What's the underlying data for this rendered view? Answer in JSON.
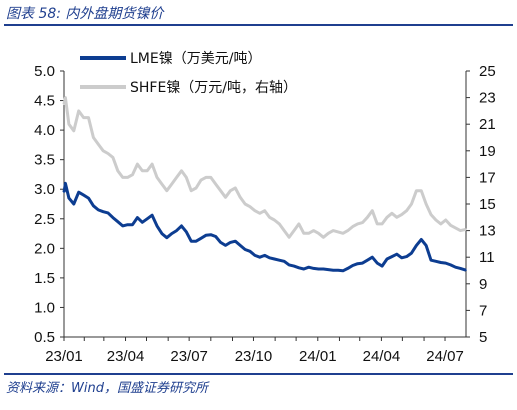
{
  "figure": {
    "title": "图表 58:   内外盘期货镍价",
    "source": "资料来源：Wind，国盛证券研究所"
  },
  "chart_data": {
    "type": "line",
    "title": "",
    "x_tick_labels": [
      "23/01",
      "23/04",
      "23/07",
      "23/10",
      "24/01",
      "24/04",
      "24/07"
    ],
    "x_range": [
      "2023-01-03",
      "2024-07-31"
    ],
    "y_left": {
      "label": "",
      "ticks": [
        "0.5",
        "1.0",
        "1.5",
        "2.0",
        "2.5",
        "3.0",
        "3.5",
        "4.0",
        "4.5",
        "5.0"
      ],
      "range": [
        0.5,
        5.0
      ]
    },
    "y_right": {
      "label": "",
      "ticks": [
        "5",
        "7",
        "9",
        "11",
        "13",
        "15",
        "17",
        "19",
        "21",
        "23",
        "25"
      ],
      "range": [
        5,
        25
      ]
    },
    "grid": false,
    "legend_position": "top-left",
    "series": [
      {
        "name": "LME镍（万美元/吨）",
        "axis": "left",
        "color": "#0d3d91",
        "x": [
          "2023-01-03",
          "2023-01-05",
          "2023-01-10",
          "2023-01-17",
          "2023-01-24",
          "2023-01-31",
          "2023-02-07",
          "2023-02-14",
          "2023-02-21",
          "2023-02-28",
          "2023-03-07",
          "2023-03-14",
          "2023-03-21",
          "2023-03-28",
          "2023-04-04",
          "2023-04-11",
          "2023-04-18",
          "2023-04-25",
          "2023-05-02",
          "2023-05-09",
          "2023-05-16",
          "2023-05-23",
          "2023-05-30",
          "2023-06-06",
          "2023-06-13",
          "2023-06-20",
          "2023-06-27",
          "2023-07-04",
          "2023-07-11",
          "2023-07-18",
          "2023-07-25",
          "2023-08-01",
          "2023-08-08",
          "2023-08-15",
          "2023-08-22",
          "2023-08-29",
          "2023-09-05",
          "2023-09-12",
          "2023-09-19",
          "2023-09-26",
          "2023-10-03",
          "2023-10-10",
          "2023-10-17",
          "2023-10-24",
          "2023-10-31",
          "2023-11-07",
          "2023-11-14",
          "2023-11-21",
          "2023-11-28",
          "2023-12-05",
          "2023-12-12",
          "2023-12-19",
          "2023-12-26",
          "2024-01-02",
          "2024-01-09",
          "2024-01-16",
          "2024-01-23",
          "2024-01-30",
          "2024-02-06",
          "2024-02-13",
          "2024-02-20",
          "2024-02-27",
          "2024-03-05",
          "2024-03-12",
          "2024-03-19",
          "2024-03-26",
          "2024-04-02",
          "2024-04-09",
          "2024-04-16",
          "2024-04-23",
          "2024-04-30",
          "2024-05-07",
          "2024-05-14",
          "2024-05-21",
          "2024-05-28",
          "2024-06-04",
          "2024-06-11",
          "2024-06-18",
          "2024-06-25",
          "2024-07-02",
          "2024-07-09",
          "2024-07-16",
          "2024-07-23",
          "2024-07-31"
        ],
        "values": [
          2.95,
          3.1,
          2.85,
          2.75,
          2.95,
          2.9,
          2.85,
          2.72,
          2.65,
          2.62,
          2.6,
          2.52,
          2.45,
          2.38,
          2.4,
          2.4,
          2.52,
          2.44,
          2.5,
          2.56,
          2.38,
          2.25,
          2.18,
          2.25,
          2.3,
          2.38,
          2.28,
          2.12,
          2.12,
          2.17,
          2.22,
          2.23,
          2.2,
          2.1,
          2.05,
          2.1,
          2.12,
          2.05,
          1.98,
          1.95,
          1.88,
          1.85,
          1.88,
          1.84,
          1.82,
          1.8,
          1.78,
          1.72,
          1.7,
          1.67,
          1.65,
          1.68,
          1.66,
          1.65,
          1.65,
          1.64,
          1.63,
          1.63,
          1.62,
          1.66,
          1.71,
          1.74,
          1.75,
          1.8,
          1.85,
          1.75,
          1.7,
          1.82,
          1.86,
          1.9,
          1.84,
          1.86,
          1.92,
          2.05,
          2.15,
          2.05,
          1.8,
          1.78,
          1.76,
          1.75,
          1.72,
          1.68,
          1.66,
          1.63
        ]
      },
      {
        "name": "SHFE镍（万元/吨，右轴）",
        "axis": "right",
        "color": "#cccccc",
        "x": [
          "2023-01-03",
          "2023-01-05",
          "2023-01-10",
          "2023-01-17",
          "2023-01-24",
          "2023-01-31",
          "2023-02-07",
          "2023-02-14",
          "2023-02-21",
          "2023-02-28",
          "2023-03-07",
          "2023-03-14",
          "2023-03-21",
          "2023-03-28",
          "2023-04-04",
          "2023-04-11",
          "2023-04-18",
          "2023-04-25",
          "2023-05-02",
          "2023-05-09",
          "2023-05-16",
          "2023-05-23",
          "2023-05-30",
          "2023-06-06",
          "2023-06-13",
          "2023-06-20",
          "2023-06-27",
          "2023-07-04",
          "2023-07-11",
          "2023-07-18",
          "2023-07-25",
          "2023-08-01",
          "2023-08-08",
          "2023-08-15",
          "2023-08-22",
          "2023-08-29",
          "2023-09-05",
          "2023-09-12",
          "2023-09-19",
          "2023-09-26",
          "2023-10-03",
          "2023-10-10",
          "2023-10-17",
          "2023-10-24",
          "2023-10-31",
          "2023-11-07",
          "2023-11-14",
          "2023-11-21",
          "2023-11-28",
          "2023-12-05",
          "2023-12-12",
          "2023-12-19",
          "2023-12-26",
          "2024-01-02",
          "2024-01-09",
          "2024-01-16",
          "2024-01-23",
          "2024-01-30",
          "2024-02-06",
          "2024-02-13",
          "2024-02-20",
          "2024-02-27",
          "2024-03-05",
          "2024-03-12",
          "2024-03-19",
          "2024-03-26",
          "2024-04-02",
          "2024-04-09",
          "2024-04-16",
          "2024-04-23",
          "2024-04-30",
          "2024-05-07",
          "2024-05-14",
          "2024-05-21",
          "2024-05-28",
          "2024-06-04",
          "2024-06-11",
          "2024-06-18",
          "2024-06-25",
          "2024-07-02",
          "2024-07-09",
          "2024-07-16",
          "2024-07-23",
          "2024-07-31"
        ],
        "values": [
          22.5,
          23.0,
          21.0,
          20.5,
          22.0,
          21.5,
          21.5,
          20.0,
          19.5,
          19.0,
          18.8,
          18.5,
          17.5,
          17.0,
          17.0,
          17.2,
          18.0,
          17.5,
          17.5,
          18.0,
          17.0,
          16.5,
          16.0,
          16.5,
          17.0,
          17.5,
          17.0,
          16.0,
          16.2,
          16.8,
          17.0,
          17.0,
          16.5,
          16.0,
          15.5,
          16.0,
          16.2,
          15.5,
          15.0,
          14.8,
          14.5,
          14.3,
          14.5,
          14.0,
          13.8,
          13.5,
          13.0,
          12.5,
          13.0,
          13.5,
          12.8,
          12.8,
          13.0,
          12.8,
          12.5,
          12.8,
          13.0,
          12.9,
          12.8,
          13.0,
          13.3,
          13.5,
          13.6,
          14.0,
          14.5,
          13.5,
          13.5,
          14.0,
          14.3,
          14.0,
          14.2,
          14.5,
          15.0,
          16.0,
          16.0,
          15.0,
          14.2,
          13.8,
          13.5,
          13.8,
          13.4,
          13.2,
          13.0,
          13.1
        ]
      }
    ]
  }
}
